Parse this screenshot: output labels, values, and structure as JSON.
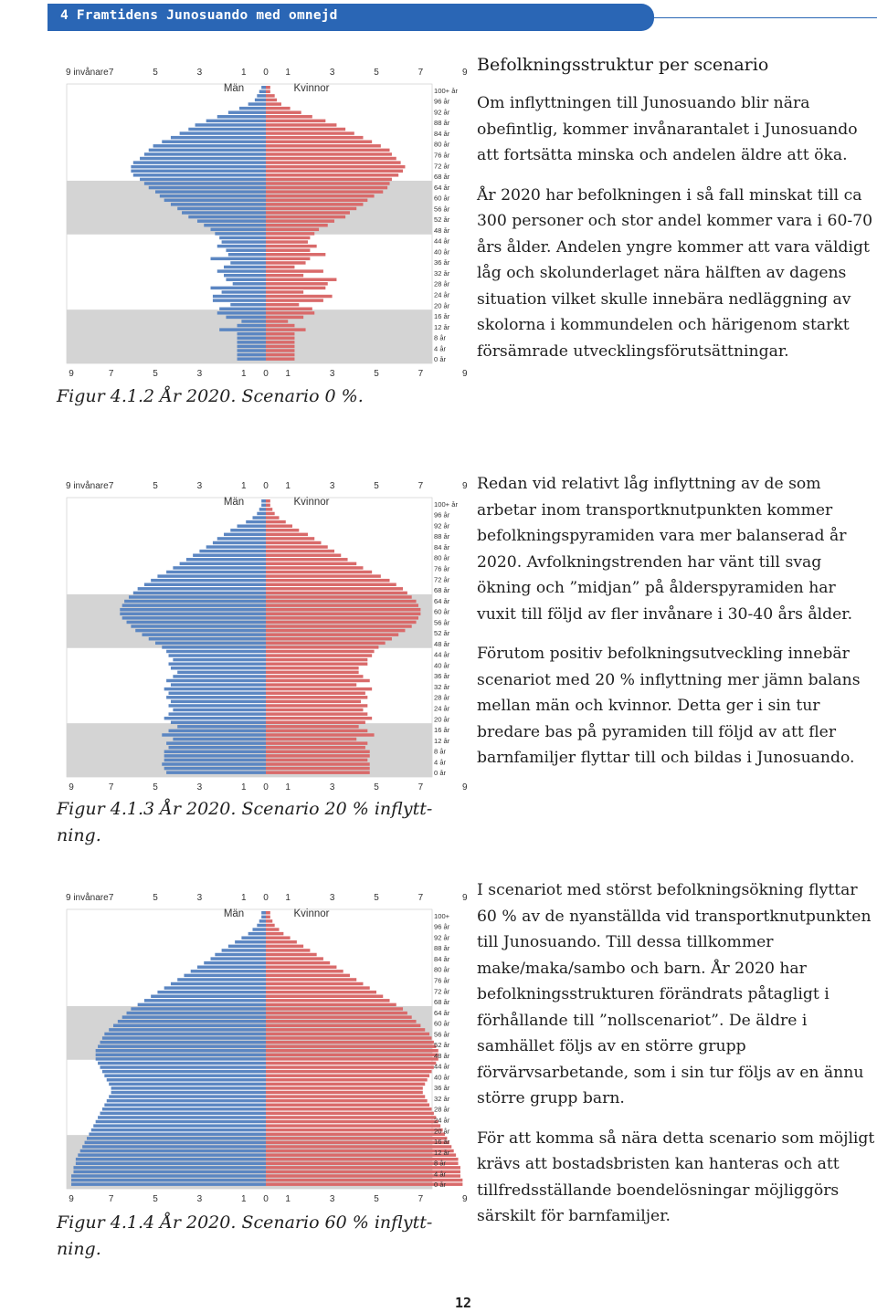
{
  "header": {
    "title": "4 Framtidens Junosuando med omnejd"
  },
  "colors": {
    "header": "#2a66b5",
    "men": "#5b86c2",
    "women": "#d96a6a",
    "band": "#d4d4d4"
  },
  "pyramid_labels": {
    "top_axis": [
      "9 invånare",
      "7",
      "5",
      "3",
      "1",
      "0",
      "1",
      "3",
      "5",
      "7",
      "9"
    ],
    "bottom_axis": [
      "9",
      "7",
      "5",
      "3",
      "1",
      "0",
      "1",
      "3",
      "5",
      "7",
      "9"
    ],
    "men": "Män",
    "women": "Kvinnor",
    "age_labels_a": [
      "100+ år",
      "96 år",
      "92 år",
      "88 år",
      "84 år",
      "80 år",
      "76 år",
      "72 år",
      "68 år",
      "64 år",
      "60 år",
      "56 år",
      "52 år",
      "48 år",
      "44 år",
      "40 år",
      "36 år",
      "32 år",
      "28 år",
      "24 år",
      "20 år",
      "16 år",
      "12 år",
      "8 år",
      "4 år",
      "0 år"
    ],
    "age_labels_b": [
      "100+",
      "96 år",
      "92 år",
      "88 år",
      "84 år",
      "80 år",
      "76 år",
      "72 år",
      "68 år",
      "64 år",
      "60 år",
      "56 år",
      "52 år",
      "48 år",
      "44 år",
      "40 år",
      "36 år",
      "32 år",
      "28 år",
      "24 år",
      "20 år",
      "16 år",
      "12 år",
      "8 år",
      "4 år",
      "0 år"
    ]
  },
  "chart_data": [
    {
      "type": "bar",
      "subtype": "population-pyramid",
      "age_groups_top_down": [
        [
          0.2,
          0.2
        ],
        [
          0.3,
          0.2
        ],
        [
          0.4,
          0.4
        ],
        [
          0.5,
          0.5
        ],
        [
          0.8,
          0.7
        ],
        [
          1.2,
          1.1
        ],
        [
          1.7,
          1.6
        ],
        [
          2.2,
          2.1
        ],
        [
          2.7,
          2.7
        ],
        [
          3.2,
          3.2
        ],
        [
          3.5,
          3.6
        ],
        [
          3.9,
          4.0
        ],
        [
          4.3,
          4.4
        ],
        [
          4.7,
          4.8
        ],
        [
          5.1,
          5.2
        ],
        [
          5.3,
          5.6
        ],
        [
          5.5,
          5.7
        ],
        [
          5.7,
          5.9
        ],
        [
          6.0,
          6.1
        ],
        [
          6.1,
          6.3
        ],
        [
          6.1,
          6.2
        ],
        [
          6.0,
          6.0
        ],
        [
          5.7,
          5.7
        ],
        [
          5.5,
          5.6
        ],
        [
          5.3,
          5.5
        ],
        [
          5.0,
          5.3
        ],
        [
          4.8,
          4.9
        ],
        [
          4.6,
          4.6
        ],
        [
          4.3,
          4.4
        ],
        [
          4.0,
          4.1
        ],
        [
          3.8,
          3.8
        ],
        [
          3.5,
          3.6
        ],
        [
          3.1,
          3.1
        ],
        [
          2.8,
          2.8
        ],
        [
          2.5,
          2.4
        ],
        [
          2.3,
          2.2
        ],
        [
          2.1,
          2.0
        ],
        [
          2.0,
          1.9
        ],
        [
          2.2,
          2.3
        ],
        [
          1.8,
          2.0
        ],
        [
          1.7,
          2.7
        ],
        [
          2.5,
          2.0
        ],
        [
          1.6,
          1.8
        ],
        [
          1.9,
          1.3
        ],
        [
          2.2,
          2.6
        ],
        [
          1.9,
          1.7
        ],
        [
          1.8,
          3.2
        ],
        [
          1.5,
          2.8
        ],
        [
          2.5,
          2.7
        ],
        [
          2.0,
          1.7
        ],
        [
          2.4,
          3.0
        ],
        [
          2.4,
          2.6
        ],
        [
          1.6,
          1.5
        ],
        [
          2.1,
          2.1
        ],
        [
          2.2,
          2.2
        ],
        [
          1.8,
          1.7
        ],
        [
          1.1,
          1.0
        ],
        [
          1.3,
          1.3
        ],
        [
          2.1,
          1.8
        ],
        [
          1.3,
          1.3
        ],
        [
          1.3,
          1.3
        ],
        [
          1.3,
          1.3
        ],
        [
          1.3,
          1.3
        ],
        [
          1.3,
          1.3
        ],
        [
          1.3,
          1.3
        ],
        [
          1.3,
          1.3
        ]
      ],
      "xlim": [
        -9,
        9
      ],
      "title": "Figur 4.1.2 År 2020. Scenario 0 %."
    },
    {
      "type": "bar",
      "subtype": "population-pyramid",
      "age_groups_top_down": [
        [
          0.2,
          0.2
        ],
        [
          0.2,
          0.2
        ],
        [
          0.3,
          0.3
        ],
        [
          0.4,
          0.4
        ],
        [
          0.6,
          0.6
        ],
        [
          0.9,
          0.9
        ],
        [
          1.3,
          1.2
        ],
        [
          1.6,
          1.5
        ],
        [
          1.9,
          1.9
        ],
        [
          2.2,
          2.2
        ],
        [
          2.4,
          2.5
        ],
        [
          2.7,
          2.8
        ],
        [
          3.0,
          3.1
        ],
        [
          3.3,
          3.4
        ],
        [
          3.6,
          3.7
        ],
        [
          3.9,
          4.1
        ],
        [
          4.2,
          4.4
        ],
        [
          4.5,
          4.8
        ],
        [
          4.9,
          5.2
        ],
        [
          5.2,
          5.6
        ],
        [
          5.5,
          5.9
        ],
        [
          5.8,
          6.2
        ],
        [
          6.0,
          6.4
        ],
        [
          6.2,
          6.6
        ],
        [
          6.4,
          6.8
        ],
        [
          6.5,
          6.9
        ],
        [
          6.6,
          7.0
        ],
        [
          6.6,
          7.0
        ],
        [
          6.5,
          6.9
        ],
        [
          6.3,
          6.8
        ],
        [
          6.1,
          6.6
        ],
        [
          5.9,
          6.3
        ],
        [
          5.6,
          6.0
        ],
        [
          5.3,
          5.7
        ],
        [
          5.0,
          5.4
        ],
        [
          4.7,
          5.1
        ],
        [
          4.5,
          4.9
        ],
        [
          4.4,
          4.8
        ],
        [
          4.2,
          4.6
        ],
        [
          4.4,
          4.6
        ],
        [
          4.3,
          4.2
        ],
        [
          4.0,
          4.2
        ],
        [
          4.2,
          4.4
        ],
        [
          4.5,
          4.7
        ],
        [
          4.3,
          4.1
        ],
        [
          4.6,
          4.8
        ],
        [
          4.4,
          4.5
        ],
        [
          4.5,
          4.6
        ],
        [
          4.3,
          4.3
        ],
        [
          4.4,
          4.6
        ],
        [
          4.2,
          4.4
        ],
        [
          4.4,
          4.6
        ],
        [
          4.6,
          4.8
        ],
        [
          4.3,
          4.5
        ],
        [
          4.0,
          4.2
        ],
        [
          4.4,
          4.6
        ],
        [
          4.7,
          4.9
        ],
        [
          4.2,
          4.1
        ],
        [
          4.5,
          4.6
        ],
        [
          4.4,
          4.5
        ],
        [
          4.6,
          4.7
        ],
        [
          4.6,
          4.7
        ],
        [
          4.6,
          4.6
        ],
        [
          4.7,
          4.7
        ],
        [
          4.6,
          4.7
        ],
        [
          4.5,
          4.7
        ]
      ],
      "xlim": [
        -9,
        9
      ],
      "title": "Figur 4.1.3 År 2020. Scenario 20 % inflyttning."
    },
    {
      "type": "bar",
      "subtype": "population-pyramid",
      "age_groups_top_down": [
        [
          0.2,
          0.2
        ],
        [
          0.2,
          0.2
        ],
        [
          0.3,
          0.3
        ],
        [
          0.4,
          0.4
        ],
        [
          0.6,
          0.6
        ],
        [
          0.8,
          0.8
        ],
        [
          1.1,
          1.1
        ],
        [
          1.4,
          1.4
        ],
        [
          1.7,
          1.7
        ],
        [
          2.0,
          2.0
        ],
        [
          2.3,
          2.3
        ],
        [
          2.5,
          2.6
        ],
        [
          2.8,
          2.9
        ],
        [
          3.1,
          3.2
        ],
        [
          3.4,
          3.5
        ],
        [
          3.7,
          3.8
        ],
        [
          4.0,
          4.1
        ],
        [
          4.3,
          4.4
        ],
        [
          4.6,
          4.7
        ],
        [
          4.9,
          5.0
        ],
        [
          5.2,
          5.3
        ],
        [
          5.5,
          5.6
        ],
        [
          5.8,
          5.9
        ],
        [
          6.1,
          6.2
        ],
        [
          6.3,
          6.4
        ],
        [
          6.5,
          6.6
        ],
        [
          6.7,
          6.8
        ],
        [
          6.9,
          7.0
        ],
        [
          7.1,
          7.2
        ],
        [
          7.3,
          7.4
        ],
        [
          7.4,
          7.5
        ],
        [
          7.5,
          7.6
        ],
        [
          7.6,
          7.7
        ],
        [
          7.7,
          7.8
        ],
        [
          7.7,
          7.8
        ],
        [
          7.7,
          7.8
        ],
        [
          7.6,
          7.7
        ],
        [
          7.5,
          7.6
        ],
        [
          7.4,
          7.5
        ],
        [
          7.3,
          7.4
        ],
        [
          7.2,
          7.3
        ],
        [
          7.1,
          7.2
        ],
        [
          7.0,
          7.1
        ],
        [
          7.0,
          7.1
        ],
        [
          7.1,
          7.2
        ],
        [
          7.2,
          7.3
        ],
        [
          7.3,
          7.4
        ],
        [
          7.4,
          7.5
        ],
        [
          7.5,
          7.6
        ],
        [
          7.6,
          7.7
        ],
        [
          7.7,
          7.8
        ],
        [
          7.8,
          7.9
        ],
        [
          7.9,
          8.0
        ],
        [
          8.0,
          8.1
        ],
        [
          8.1,
          8.2
        ],
        [
          8.2,
          8.3
        ],
        [
          8.3,
          8.4
        ],
        [
          8.4,
          8.5
        ],
        [
          8.5,
          8.6
        ],
        [
          8.6,
          8.7
        ],
        [
          8.6,
          8.7
        ],
        [
          8.7,
          8.8
        ],
        [
          8.7,
          8.8
        ],
        [
          8.8,
          8.8
        ],
        [
          8.8,
          8.9
        ],
        [
          8.8,
          8.9
        ]
      ],
      "xlim": [
        -9,
        9
      ],
      "title": "Figur 4.1.4 År 2020. Scenario 60 % inflyttning."
    }
  ],
  "captions": {
    "fig1": "Figur 4.1.2 År 2020. Scenario 0 %.",
    "fig2": "Figur 4.1.3 År 2020. Scenario 20 % inflytt-ning.",
    "fig3": "Figur 4.1.4 År 2020. Scenario 60 % inflytt-ning."
  },
  "section1": {
    "title": "Befolkningsstruktur per scenario",
    "p1": "Om inflyttningen till Junosuando blir nära obefintlig, kommer invånarantalet i Junosuando att fortsätta minska och andelen äldre att öka.",
    "p2": "År 2020 har befolkningen i så fall minskat till ca 300 personer och stor andel kommer vara i 60-70 års ålder. Andelen yngre kommer att vara väldigt låg och skolunderlaget nära hälften av dagens situation vilket skulle innebära nedläggning av skolorna i kommundelen och härigenom starkt försämrade utvecklingsförutsättningar."
  },
  "section2": {
    "p1": "Redan vid relativt låg inflyttning av de som arbetar inom transportknutpunkten kommer befolkningspyramiden vara mer balanserad år 2020. Avfolkningstrenden har vänt till svag ökning och ”midjan” på ålderspyramiden har vuxit till följd av fler invånare i 30-40 års ålder.",
    "p2": "Förutom positiv befolkningsutveckling innebär scenariot med 20 % inflyttning mer jämn balans mellan män och kvinnor. Detta ger i sin tur bredare bas på pyramiden till följd av att fler barnfamiljer flyttar till och bildas i Junosuando."
  },
  "section3": {
    "p1": "I scenariot med störst befolkningsökning flyttar 60 % av de nyanställda vid transportknutpunkten till Junosuando. Till dessa tillkommer make/maka/sambo och barn. År 2020 har befolkningsstrukturen förändrats påtagligt i förhållande till ”nollscenariot”. De äldre i samhället följs av en större grupp förvärvsarbetande, som i sin tur följs av en ännu större grupp barn.",
    "p2": "För att komma så nära detta scenario som möjligt krävs att bostadsbristen kan hanteras och att tillfredsställande boendelösningar möjliggörs särskilt för barnfamiljer."
  },
  "page": {
    "number": "12"
  }
}
